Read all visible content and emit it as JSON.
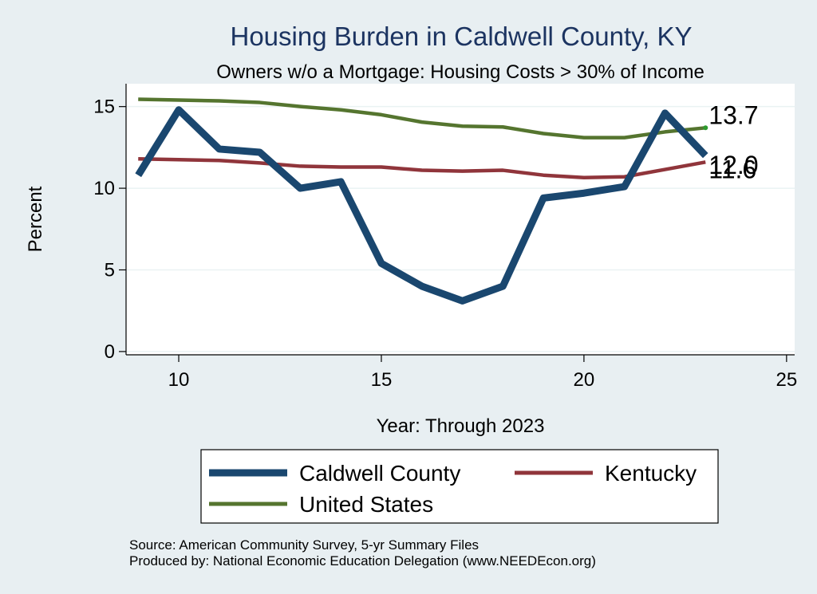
{
  "chart_data": {
    "type": "line",
    "title": "Housing Burden in Caldwell County, KY",
    "subtitle": "Owners w/o a Mortgage: Housing Costs > 30% of Income",
    "xlabel": "Year: Through 2023",
    "ylabel": "Percent",
    "xlim": [
      8.7,
      25.2
    ],
    "ylim": [
      -0.2,
      16.4
    ],
    "xticks": [
      10,
      15,
      20,
      25
    ],
    "yticks": [
      0,
      5,
      10,
      15
    ],
    "x": [
      9,
      10,
      11,
      12,
      13,
      14,
      15,
      16,
      17,
      18,
      19,
      20,
      21,
      22,
      23
    ],
    "series": [
      {
        "name": "Caldwell County",
        "color": "#1a476f",
        "values": [
          10.8,
          14.8,
          12.4,
          12.2,
          10.0,
          10.4,
          5.4,
          4.0,
          3.1,
          4.0,
          9.4,
          9.7,
          10.1,
          14.6,
          12.0
        ],
        "end_label": "12.0"
      },
      {
        "name": "Kentucky",
        "color": "#90353b",
        "values": [
          11.8,
          11.75,
          11.7,
          11.55,
          11.35,
          11.3,
          11.3,
          11.1,
          11.05,
          11.1,
          10.8,
          10.65,
          10.7,
          11.15,
          11.6
        ],
        "end_label": "11.6"
      },
      {
        "name": "United States",
        "color": "#55752f",
        "values": [
          15.45,
          15.4,
          15.35,
          15.25,
          15.0,
          14.8,
          14.5,
          14.05,
          13.8,
          13.75,
          13.35,
          13.1,
          13.1,
          13.45,
          13.7
        ],
        "end_label": "13.7"
      }
    ],
    "legend_position": "bottom"
  },
  "source_lines": [
    "Source: American Community Survey, 5-yr Summary Files",
    "Produced by: National Economic Education Delegation (www.NEEDEcon.org)"
  ]
}
